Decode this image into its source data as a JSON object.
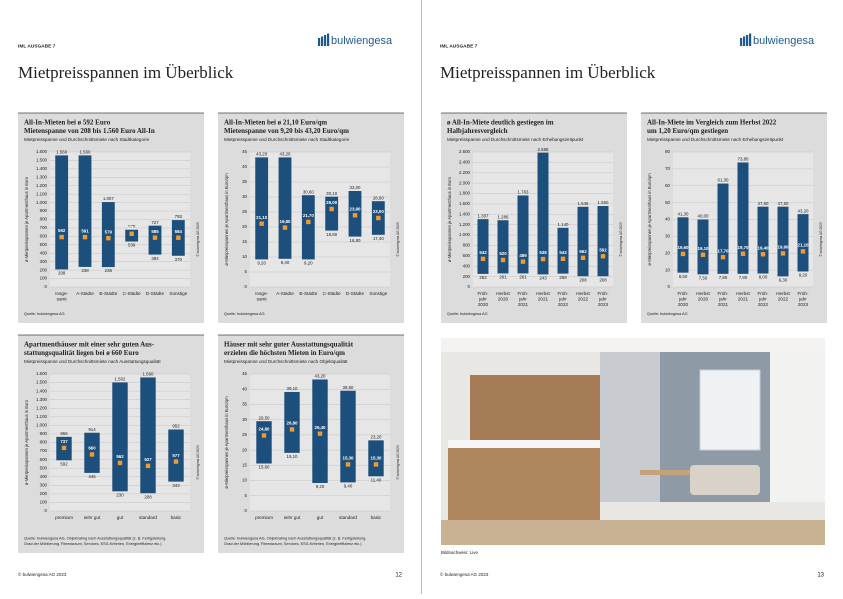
{
  "pages": [
    {
      "header": "IML AUSGABE 7",
      "logo": "bulwiengesa",
      "title": "Mietpreisspannen im Überblick",
      "footer": "© bulwiengesa AG 2023",
      "page_number": "12"
    },
    {
      "header": "IML AUSGABE 7",
      "logo": "bulwiengesa",
      "title": "Mietpreisspannen im Überblick",
      "footer": "© bulwiengesa AG 2023",
      "page_number": "13"
    }
  ],
  "photo": {
    "caption": "Bildnachweis: Live"
  },
  "chart_data": [
    {
      "type": "range",
      "title": [
        "All-In-Mieten bei ø 592 Euro",
        "Mietenspanne von 208 bis 1.560 Euro All-In"
      ],
      "subtitle": "Mietpreisspanne und Durchschnittsmiete nach Stadtkategorie",
      "ylabel": "ø-Mietpreisspannen je Apartmenthaus in Euro",
      "credit": "© bulwiengesa AG 2023",
      "source": [
        "Quelle: bulwiengesa AG"
      ],
      "categories": [
        [
          "Insge-",
          "samt"
        ],
        [
          "A-Städte"
        ],
        [
          "B-Städte"
        ],
        [
          "C-Städte"
        ],
        [
          "D-Städte"
        ],
        [
          "Sonstige"
        ]
      ],
      "high": {
        "values": [
          1560,
          1560,
          1007,
          679,
          727,
          793
        ],
        "value_labels": [
          "1.560",
          "1.560",
          "1.007",
          "679",
          "727",
          "793"
        ]
      },
      "low": {
        "values": [
          208,
          238,
          236,
          539,
          384,
          370
        ]
      },
      "mean": {
        "values": [
          592,
          591,
          579,
          631,
          585,
          584
        ]
      },
      "ylim": [
        0,
        1600
      ],
      "yticks": [
        0,
        100,
        200,
        300,
        400,
        500,
        600,
        700,
        800,
        900,
        {
          "value": 1000,
          "label": "1.000"
        },
        {
          "value": 1100,
          "label": "1.100"
        },
        {
          "value": 1200,
          "label": "1.200"
        },
        {
          "value": 1300,
          "label": "1.300"
        },
        {
          "value": 1400,
          "label": "1.400"
        },
        {
          "value": 1500,
          "label": "1.500"
        },
        {
          "value": 1600,
          "label": "1.600"
        }
      ],
      "color": "#1d4f7c",
      "marker_color": "#f39a2e",
      "grid": true
    },
    {
      "type": "range",
      "title": [
        "All-In-Mieten bei ø 21,10 Euro/qm",
        "Mietenspanne von 9,20 bis 43,20 Euro/qm"
      ],
      "subtitle": "Mietpreisspanne und Durchschnittsmiete nach Stadtkategorie",
      "ylabel": "ø-Mietpreisspannen je Apartmenthaus in Euro/qm",
      "credit": "© bulwiengesa AG 2023",
      "source": [
        "Quelle: bulwiengesa AG"
      ],
      "categories": [
        [
          "Insge-",
          "samt"
        ],
        [
          "A-Städte"
        ],
        [
          "B-Städte"
        ],
        [
          "C-Städte"
        ],
        [
          "D-Städte"
        ],
        [
          "Sonstige"
        ]
      ],
      "high": {
        "values": [
          43.2,
          43.2,
          30.6,
          30.1,
          32,
          28.6
        ],
        "value_labels": [
          "43,20",
          "43,20",
          "30,60",
          "30,10",
          "32,00",
          "28,60"
        ]
      },
      "low": {
        "values": [
          9.2,
          9.4,
          9.2,
          18.8,
          16.8,
          17.4
        ],
        "value_labels": [
          "9,20",
          "9,40",
          "9,20",
          "18,80",
          "16,80",
          "17,40"
        ]
      },
      "mean": {
        "values": [
          21.1,
          19.8,
          21.7,
          26,
          23.9,
          23
        ],
        "value_labels": [
          "21,10",
          "19,80",
          "21,70",
          "26,00",
          "23,90",
          "23,00"
        ]
      },
      "ylim": [
        0,
        45
      ],
      "yticks": [
        0,
        5,
        10,
        15,
        20,
        25,
        30,
        35,
        40,
        45
      ],
      "color": "#1d4f7c",
      "marker_color": "#f39a2e",
      "grid": true
    },
    {
      "type": "range",
      "title": [
        "Apartmenthäuser mit einer sehr guten Aus-",
        "stattungsqualität liegen bei ø 660 Euro"
      ],
      "subtitle": "Mietpreisspanne und Durchschnittsmiete nach Ausstattungsqualität",
      "ylabel": "ø-Mietpreisspannen je Apartmenthaus in Euro",
      "credit": "© bulwiengesa AG 2023",
      "source": [
        "Quelle: bulwiengesa AG, Objektrating nach Ausstattungsqualität (z. B. Fertigstellung,",
        "Grad der Möblierung, Fitnessraum, Services, ESG-Kriterien, Energieeffizienz etc.)"
      ],
      "categories": [
        [
          "premium"
        ],
        [
          "sehr gut"
        ],
        [
          "gut"
        ],
        [
          "standard"
        ],
        [
          "basic"
        ]
      ],
      "high": {
        "values": [
          866,
          914,
          1502,
          1560,
          952
        ],
        "value_labels": [
          "866",
          "914",
          "1.502",
          "1.560",
          "952"
        ]
      },
      "low": {
        "values": [
          592,
          445,
          230,
          208,
          343
        ]
      },
      "mean": {
        "values": [
          737,
          660,
          562,
          527,
          577
        ]
      },
      "ylim": [
        0,
        1600
      ],
      "yticks": [
        0,
        100,
        200,
        300,
        400,
        500,
        600,
        700,
        800,
        900,
        {
          "value": 1000,
          "label": "1.000"
        },
        {
          "value": 1100,
          "label": "1.100"
        },
        {
          "value": 1200,
          "label": "1.200"
        },
        {
          "value": 1300,
          "label": "1.300"
        },
        {
          "value": 1400,
          "label": "1.400"
        },
        {
          "value": 1500,
          "label": "1.500"
        },
        {
          "value": 1600,
          "label": "1.600"
        }
      ],
      "color": "#1d4f7c",
      "marker_color": "#f39a2e",
      "grid": true
    },
    {
      "type": "range",
      "title": [
        "Häuser mit sehr guter Ausstattungsqualität",
        "erzielen die höchsten Mieten in Euro/qm"
      ],
      "subtitle": "Mietpreisspanne und Durchschnittsmiete nach Objektqualität",
      "ylabel": "ø-Mietpreisspannen je Apartmenthaus in Euro/qm",
      "credit": "© bulwiengesa AG 2023",
      "source": [
        "Quelle: bulwiengesa AG, Objektrating nach Ausstattungsqualität (z. B. Fertigstellung,",
        "Grad der Möblierung, Fitnessraum, Services, ESG-Kriterien, Energieeffizienz etc.)"
      ],
      "categories": [
        [
          "premium"
        ],
        [
          "sehr gut"
        ],
        [
          "gut"
        ],
        [
          "standard"
        ],
        [
          "basic"
        ]
      ],
      "high": {
        "values": [
          29.5,
          39.1,
          43.2,
          39.5,
          23.2
        ],
        "value_labels": [
          "29,50",
          "39,10",
          "43,20",
          "39,50",
          "23,20"
        ]
      },
      "low": {
        "values": [
          15.6,
          19.1,
          9.2,
          9.4,
          11.4
        ],
        "value_labels": [
          "15,60",
          "19,10",
          "9,20",
          "9,40",
          "11,40"
        ]
      },
      "mean": {
        "values": [
          24.8,
          26.8,
          25.4,
          15.3,
          15.3
        ],
        "value_labels": [
          "24,80",
          "26,80",
          "25,40",
          "15,30",
          "15,30"
        ]
      },
      "ylim": [
        0,
        45
      ],
      "yticks": [
        0,
        5,
        10,
        15,
        20,
        25,
        30,
        35,
        40,
        45
      ],
      "color": "#1d4f7c",
      "marker_color": "#f39a2e",
      "grid": true
    },
    {
      "type": "range",
      "title": [
        "ø All-In-Miete deutlich gestiegen im",
        "Halbjahresvergleich"
      ],
      "subtitle": "Mietpreisspanne und Durchschnittsmiete nach Erhebungszeitpunkt",
      "ylabel": "ø-Mietpreisspannen je Apartmenthaus in Euro",
      "credit": "© bulwiengesa AG 2023",
      "source": [
        "Quelle: bulwiengesa AG"
      ],
      "categories": [
        [
          "Früh-",
          "jahr",
          "2020"
        ],
        [
          "Herbst",
          "2020"
        ],
        [
          "Früh-",
          "jahr",
          "2021"
        ],
        [
          "Herbst",
          "2021"
        ],
        [
          "Früh-",
          "jahr",
          "2022"
        ],
        [
          "Herbst",
          "2022"
        ],
        [
          "Früh-",
          "jahr",
          "2023"
        ]
      ],
      "high": {
        "values": [
          1307,
          1286,
          1763,
          2588,
          1140,
          1545,
          1560
        ],
        "value_labels": [
          "1.307",
          "1.286",
          "1.763",
          "2.588",
          "1.140",
          "1.545",
          "1.560"
        ]
      },
      "low": {
        "values": [
          252,
          261,
          261,
          243,
          258,
          208,
          208
        ]
      },
      "mean": {
        "values": [
          542,
          520,
          489,
          538,
          543,
          562,
          592
        ]
      },
      "ylim": [
        0,
        2600
      ],
      "yticks": [
        0,
        200,
        400,
        600,
        800,
        {
          "value": 1000,
          "label": "1.000"
        },
        {
          "value": 1200,
          "label": "1.200"
        },
        {
          "value": 1400,
          "label": "1.400"
        },
        {
          "value": 1600,
          "label": "1.600"
        },
        {
          "value": 1800,
          "label": "1.800"
        },
        {
          "value": 2000,
          "label": "2.000"
        },
        {
          "value": 2200,
          "label": "2.200"
        },
        {
          "value": 2400,
          "label": "2.400"
        },
        {
          "value": 2600,
          "label": "2.600"
        }
      ],
      "color": "#1d4f7c",
      "marker_color": "#f39a2e",
      "grid": true
    },
    {
      "type": "range",
      "title": [
        "All-In-Miete im Vergleich zum Herbst 2022",
        "um 1,20 Euro/qm gestiegen"
      ],
      "subtitle": "Mietpreisspanne und Durchschnittsmiete nach Erhebungszeitpunkt",
      "ylabel": "ø-Mietpreisspannen je Apartmenthaus in Euro/qm",
      "credit": "© bulwiengesa AG 2023",
      "source": [
        "Quelle: bulwiengesa AG"
      ],
      "categories": [
        [
          "Früh-",
          "jahr",
          "2020"
        ],
        [
          "Herbst",
          "2020"
        ],
        [
          "Früh-",
          "jahr",
          "2021"
        ],
        [
          "Herbst",
          "2021"
        ],
        [
          "Früh-",
          "jahr",
          "2022"
        ],
        [
          "Herbst",
          "2022"
        ],
        [
          "Früh-",
          "jahr",
          "2023"
        ]
      ],
      "high": {
        "values": [
          41.3,
          40,
          61.3,
          73.8,
          47.6,
          47.6,
          43.2
        ],
        "value_labels": [
          "41,30",
          "40,00",
          "61,30",
          "73,80",
          "47,60",
          "47,60",
          "43,20"
        ]
      },
      "low": {
        "values": [
          8.5,
          7.5,
          7.8,
          7.8,
          8,
          6.3,
          9.2
        ],
        "value_labels": [
          "8,50",
          "7,50",
          "7,80",
          "7,80",
          "8,00",
          "6,30",
          "9,20"
        ]
      },
      "mean": {
        "values": [
          19.6,
          19.1,
          17.7,
          19.7,
          19.4,
          19.9,
          21.1
        ],
        "value_labels": [
          "19,60",
          "19,10",
          "17,70",
          "19,70",
          "19,40",
          "19,90",
          "21,10"
        ]
      },
      "ylim": [
        0,
        80
      ],
      "yticks": [
        0,
        10,
        20,
        30,
        40,
        50,
        60,
        70,
        80
      ],
      "color": "#1d4f7c",
      "marker_color": "#f39a2e",
      "grid": true
    }
  ]
}
